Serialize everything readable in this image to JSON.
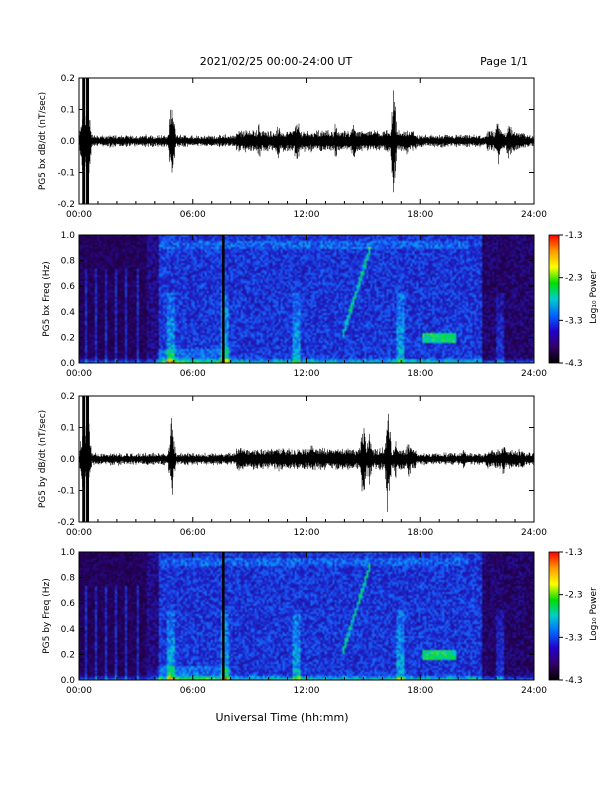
{
  "header": {
    "title": "2021/02/25  00:00-24:00 UT",
    "page": "Page 1/1"
  },
  "colors": {
    "spectrogram_low": "#1a0033",
    "spectrogram_mid": "#2233cc",
    "spectrogram_high": "#00dd00",
    "spectrogram_max": "#ff0000",
    "waveform": "#000000"
  },
  "x_axis": {
    "label": "Universal Time (hh:mm)",
    "range": [
      0,
      24
    ],
    "ticks": [
      0,
      6,
      12,
      18,
      24
    ],
    "tick_labels": [
      "00:00",
      "06:00",
      "12:00",
      "18:00",
      "24:00"
    ]
  },
  "colorbar": {
    "label": "Log₁₀ Power",
    "range": [
      -4.3,
      -1.3
    ],
    "tick_labels": [
      "-1.3",
      "-2.3",
      "-3.3",
      "-4.3"
    ],
    "colors": [
      "#ff0000",
      "#ff9900",
      "#ffff00",
      "#00dd00",
      "#00cccc",
      "#0066ff",
      "#2200cc",
      "#330066",
      "#000000"
    ]
  },
  "chart_data": [
    {
      "type": "line",
      "ylabel": "PG5 bx dB/dt (nT/sec)",
      "ylim": [
        -0.2,
        0.2
      ],
      "y_tick_labels": [
        "-0.2",
        "-0.1",
        "0.0",
        "0.1",
        "0.2"
      ],
      "series": [
        {
          "x": [
            0.25,
            0.45,
            4.9,
            8.5,
            9.5,
            10.5,
            11.5,
            13.5,
            14.5,
            15.4,
            16.2,
            16.6,
            17.3,
            22.1,
            22.7
          ],
          "amplitude": [
            0.2,
            0.2,
            0.15,
            0.05,
            0.08,
            0.07,
            0.1,
            0.07,
            0.08,
            0.05,
            0.04,
            0.2,
            0.05,
            0.09,
            0.1
          ]
        }
      ]
    },
    {
      "type": "heatmap",
      "ylabel": "PG5 bx Freq (Hz)",
      "ylim": [
        0.0,
        1.0
      ],
      "y_tick_labels": [
        "0.0",
        "0.2",
        "0.4",
        "0.6",
        "0.8",
        "1.0"
      ],
      "features": {
        "dark_gap_start": 3.5,
        "data_gap_at": 7.6,
        "rising_tone_start": 13.8,
        "rising_tone_end": 15.3,
        "pc1_band_time": [
          18.0,
          19.8
        ],
        "pc1_band_freq": [
          0.17,
          0.25
        ]
      }
    },
    {
      "type": "line",
      "ylabel": "PG5 by dB/dt (nT/sec)",
      "ylim": [
        -0.2,
        0.2
      ],
      "y_tick_labels": [
        "-0.2",
        "-0.1",
        "0.0",
        "0.1",
        "0.2"
      ],
      "series": [
        {
          "x": [
            0.25,
            0.45,
            4.9,
            8.5,
            10.5,
            12.3,
            15.0,
            15.3,
            16.3,
            16.7,
            17.4,
            20.3,
            22.4
          ],
          "amplitude": [
            0.2,
            0.2,
            0.15,
            0.06,
            0.06,
            0.06,
            0.2,
            0.12,
            0.2,
            0.08,
            0.08,
            0.05,
            0.06
          ]
        }
      ]
    },
    {
      "type": "heatmap",
      "ylabel": "PG5 by Freq (Hz)",
      "ylim": [
        0.0,
        1.0
      ],
      "y_tick_labels": [
        "0.0",
        "0.2",
        "0.4",
        "0.6",
        "0.8",
        "1.0"
      ],
      "features": {
        "dark_gap_start": 3.5,
        "data_gap_at": 7.6,
        "rising_tone_start": 13.8,
        "rising_tone_end": 15.3,
        "pc1_band_time": [
          18.0,
          19.8
        ],
        "pc1_band_freq": [
          0.17,
          0.25
        ]
      }
    }
  ]
}
